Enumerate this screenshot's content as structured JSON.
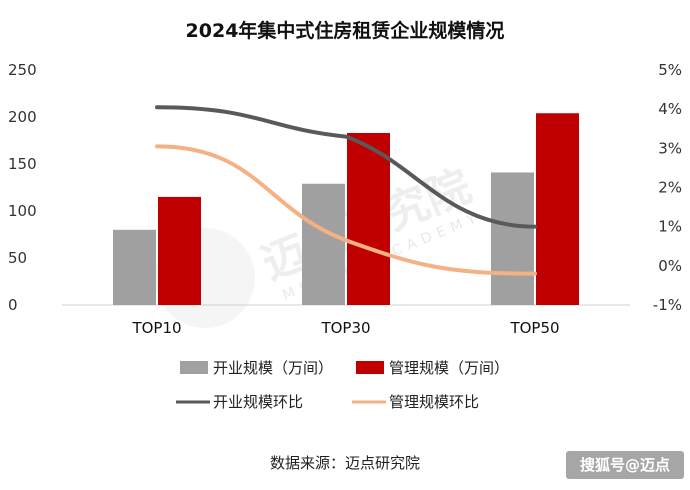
{
  "chart_data": {
    "type": "bar",
    "title": "2024年集中式住房租赁企业规模情况",
    "categories": [
      "TOP10",
      "TOP30",
      "TOP50"
    ],
    "y_left": {
      "lim": [
        0,
        250
      ],
      "ticks": [
        "0",
        "50",
        "100",
        "150",
        "200",
        "250"
      ]
    },
    "y_right": {
      "lim": [
        -1,
        5
      ],
      "ticks": [
        "-1%",
        "0%",
        "1%",
        "2%",
        "3%",
        "4%",
        "5%"
      ]
    },
    "series": [
      {
        "name": "开业规模（万间）",
        "type": "bar",
        "axis": "left",
        "color": "#a0a0a0",
        "values": [
          80,
          129,
          141
        ]
      },
      {
        "name": "管理规模（万间）",
        "type": "bar",
        "axis": "left",
        "color": "#c00000",
        "values": [
          115,
          183,
          204
        ]
      },
      {
        "name": "开业规模环比",
        "type": "line",
        "axis": "right",
        "color": "#595959",
        "values": [
          4.05,
          3.3,
          1.0
        ]
      },
      {
        "name": "管理规模环比",
        "type": "line",
        "axis": "right",
        "color": "#f4b183",
        "values": [
          3.05,
          0.65,
          -0.2
        ]
      }
    ],
    "grid": false,
    "legend_position": "bottom"
  },
  "source_note": "数据来源：迈点研究院",
  "watermark": {
    "text": "迈点研究院",
    "sub": "MEADIN ACADEMY"
  },
  "corner_mark": "搜狐号@迈点"
}
